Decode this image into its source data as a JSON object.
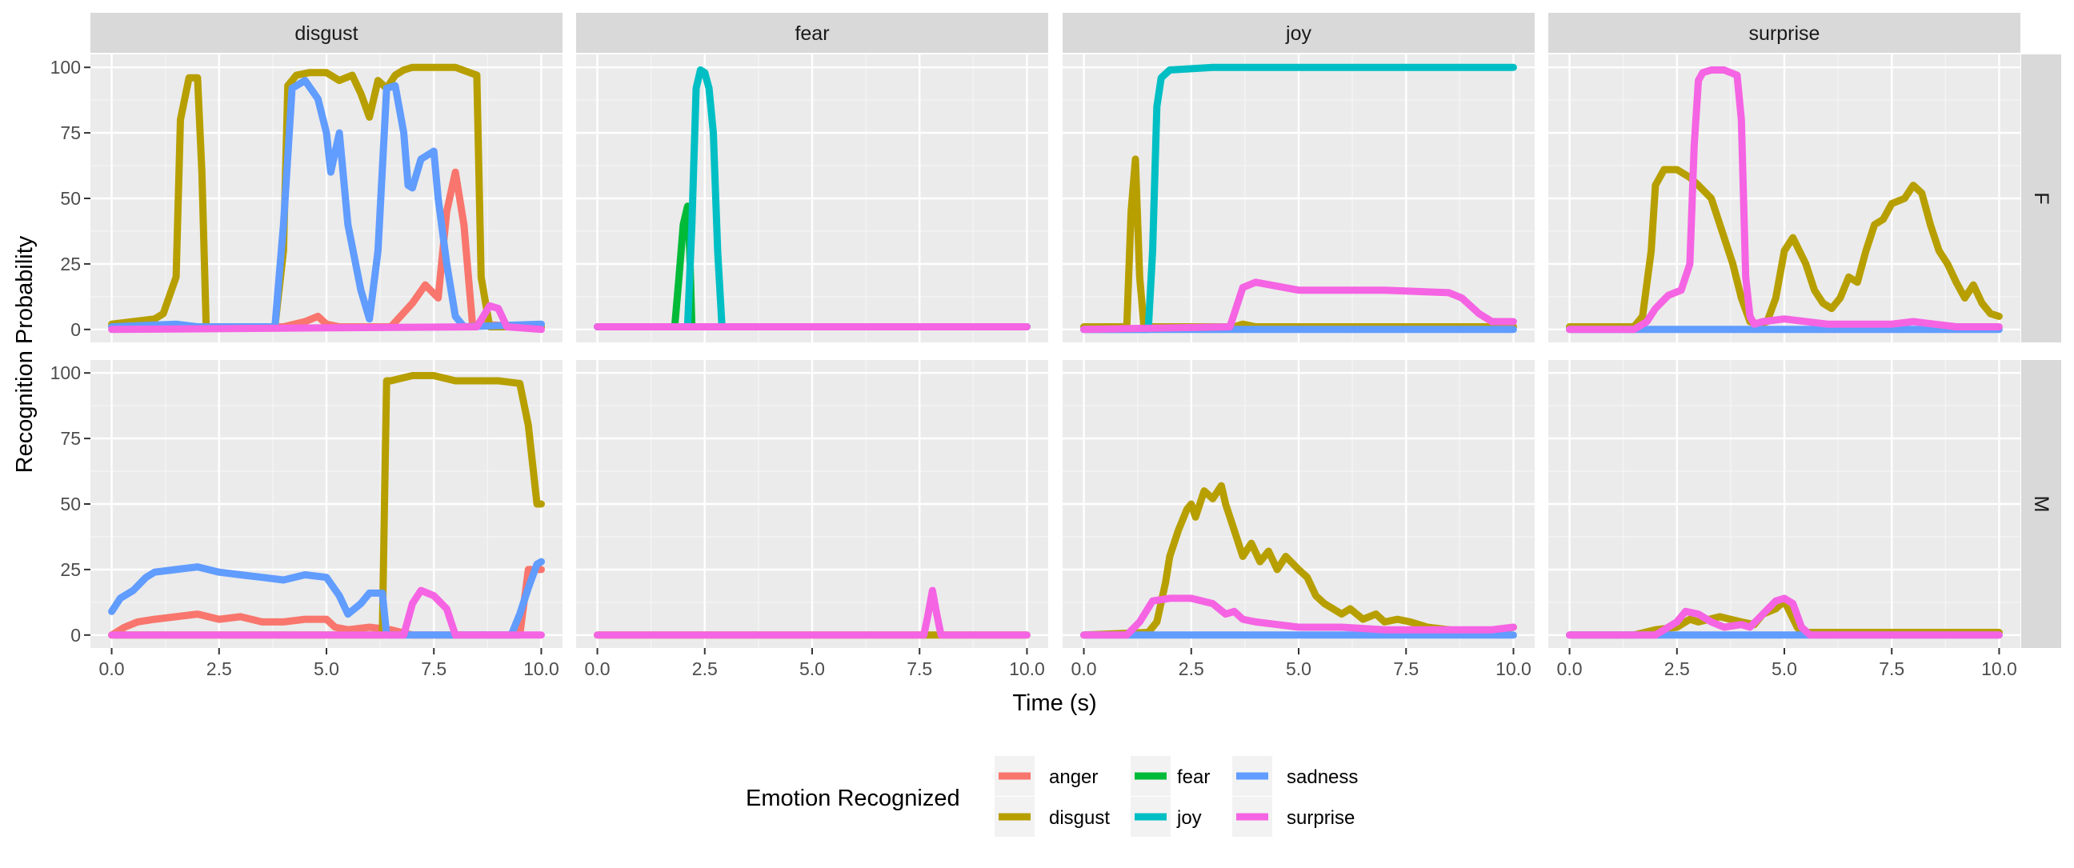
{
  "chart_data": {
    "type": "line",
    "xlabel": "Time (s)",
    "ylabel": "Recognition Probability",
    "xlim": [
      0,
      10
    ],
    "ylim": [
      0,
      100
    ],
    "x_ticks": [
      "0.0",
      "2.5",
      "5.0",
      "7.5",
      "10.0"
    ],
    "y_ticks": [
      "0",
      "25",
      "50",
      "75",
      "100"
    ],
    "x_tick_values": [
      0,
      2.5,
      5,
      7.5,
      10
    ],
    "y_tick_values": [
      0,
      25,
      50,
      75,
      100
    ],
    "grid": true,
    "facet_columns": [
      "disgust",
      "fear",
      "joy",
      "surprise"
    ],
    "facet_rows": [
      "F",
      "M"
    ],
    "legend": {
      "title": "Emotion Recognized",
      "position": "bottom",
      "entries": [
        {
          "name": "anger",
          "color": "#F8766D"
        },
        {
          "name": "disgust",
          "color": "#B79F00"
        },
        {
          "name": "fear",
          "color": "#00BA38"
        },
        {
          "name": "joy",
          "color": "#00BFC4"
        },
        {
          "name": "sadness",
          "color": "#619CFF"
        },
        {
          "name": "surprise",
          "color": "#F564E3"
        }
      ]
    },
    "panels": [
      {
        "column": "disgust",
        "row": "F",
        "series": [
          {
            "name": "disgust",
            "x": [
              0,
              0.5,
              1.0,
              1.2,
              1.5,
              1.6,
              1.8,
              2.0,
              2.1,
              2.2,
              2.5,
              3.0,
              3.8,
              4.0,
              4.1,
              4.3,
              4.6,
              5.0,
              5.3,
              5.6,
              5.8,
              6.0,
              6.2,
              6.4,
              6.6,
              6.8,
              7.0,
              7.5,
              8.0,
              8.5,
              8.6,
              8.8,
              10.0
            ],
            "y": [
              2,
              3,
              4,
              6,
              20,
              80,
              96,
              96,
              60,
              1,
              1,
              1,
              1,
              30,
              93,
              97,
              98,
              98,
              95,
              97,
              90,
              81,
              95,
              92,
              97,
              99,
              100,
              100,
              100,
              97,
              20,
              1,
              1
            ]
          },
          {
            "name": "sadness",
            "x": [
              0,
              1.5,
              2.0,
              3.8,
              4.0,
              4.2,
              4.5,
              4.8,
              5.0,
              5.1,
              5.3,
              5.5,
              5.8,
              6.0,
              6.2,
              6.4,
              6.6,
              6.8,
              6.9,
              7.0,
              7.2,
              7.5,
              7.6,
              7.8,
              8.0,
              8.2,
              10.0
            ],
            "y": [
              1,
              2,
              1,
              1,
              40,
              92,
              95,
              88,
              75,
              60,
              75,
              40,
              15,
              4,
              30,
              92,
              93,
              75,
              55,
              54,
              65,
              68,
              50,
              25,
              5,
              1,
              2
            ]
          },
          {
            "name": "anger",
            "x": [
              0,
              4.0,
              4.5,
              4.8,
              5.0,
              5.3,
              6.5,
              7.0,
              7.3,
              7.6,
              7.8,
              8.0,
              8.2,
              8.4,
              10.0
            ],
            "y": [
              1,
              1,
              3,
              5,
              2,
              1,
              1,
              10,
              17,
              12,
              45,
              60,
              40,
              2,
              1
            ]
          },
          {
            "name": "surprise",
            "x": [
              0,
              8.5,
              8.8,
              9.0,
              9.2,
              10.0
            ],
            "y": [
              0,
              1,
              9,
              8,
              1,
              0
            ]
          }
        ]
      },
      {
        "column": "fear",
        "row": "F",
        "series": [
          {
            "name": "disgust",
            "x": [
              0,
              10.0
            ],
            "y": [
              1,
              1
            ]
          },
          {
            "name": "fear",
            "x": [
              0,
              1.8,
              1.9,
              2.0,
              2.1,
              2.15,
              2.2,
              10.0
            ],
            "y": [
              1,
              1,
              20,
              40,
              47,
              30,
              1,
              1
            ]
          },
          {
            "name": "joy",
            "x": [
              0,
              2.1,
              2.2,
              2.3,
              2.4,
              2.5,
              2.6,
              2.7,
              2.8,
              2.9,
              10.0
            ],
            "y": [
              1,
              1,
              40,
              92,
              99,
              98,
              92,
              75,
              30,
              1,
              1
            ]
          },
          {
            "name": "surprise",
            "x": [
              0,
              10.0
            ],
            "y": [
              1,
              1
            ]
          }
        ]
      },
      {
        "column": "joy",
        "row": "F",
        "series": [
          {
            "name": "disgust",
            "x": [
              0,
              1.0,
              1.1,
              1.2,
              1.3,
              1.4,
              1.6,
              3.5,
              3.7,
              4.0,
              5.0,
              10.0
            ],
            "y": [
              1,
              1,
              45,
              65,
              20,
              1,
              1,
              1,
              2,
              1,
              1,
              1
            ]
          },
          {
            "name": "joy",
            "x": [
              0,
              1.5,
              1.6,
              1.7,
              1.8,
              2.0,
              3.0,
              5.0,
              10.0
            ],
            "y": [
              0,
              0,
              30,
              85,
              96,
              99,
              100,
              100,
              100
            ]
          },
          {
            "name": "surprise",
            "x": [
              0,
              3.4,
              3.5,
              3.7,
              4.0,
              5.0,
              7.0,
              8.5,
              8.8,
              9.2,
              9.5,
              10.0
            ],
            "y": [
              0,
              1,
              6,
              16,
              18,
              15,
              15,
              14,
              12,
              6,
              3,
              3
            ]
          },
          {
            "name": "sadness",
            "x": [
              0,
              10.0
            ],
            "y": [
              0,
              0
            ]
          }
        ]
      },
      {
        "column": "surprise",
        "row": "F",
        "series": [
          {
            "name": "disgust",
            "x": [
              0,
              1.5,
              1.7,
              1.9,
              2.0,
              2.2,
              2.5,
              2.8,
              3.0,
              3.3,
              3.6,
              3.8,
              4.0,
              4.2,
              4.4,
              4.6,
              4.8,
              5.0,
              5.2,
              5.5,
              5.7,
              5.9,
              6.1,
              6.3,
              6.5,
              6.7,
              6.9,
              7.1,
              7.3,
              7.5,
              7.8,
              8.0,
              8.2,
              8.4,
              8.6,
              8.8,
              9.0,
              9.2,
              9.4,
              9.6,
              9.8,
              10.0
            ],
            "y": [
              1,
              1,
              5,
              30,
              55,
              61,
              61,
              58,
              55,
              50,
              35,
              25,
              12,
              3,
              2,
              3,
              12,
              30,
              35,
              25,
              15,
              10,
              8,
              12,
              20,
              18,
              30,
              40,
              42,
              48,
              50,
              55,
              52,
              40,
              30,
              25,
              18,
              12,
              17,
              10,
              6,
              5
            ]
          },
          {
            "name": "sadness",
            "x": [
              0,
              10.0
            ],
            "y": [
              0,
              0
            ]
          },
          {
            "name": "surprise",
            "x": [
              0,
              1.5,
              1.8,
              2.0,
              2.3,
              2.6,
              2.8,
              2.9,
              3.0,
              3.1,
              3.3,
              3.6,
              3.9,
              4.0,
              4.1,
              4.2,
              4.3,
              4.5,
              5.0,
              6.0,
              7.5,
              8.0,
              9.0,
              10.0
            ],
            "y": [
              0,
              0,
              3,
              8,
              13,
              15,
              25,
              70,
              95,
              98,
              99,
              99,
              97,
              80,
              20,
              5,
              2,
              3,
              4,
              2,
              2,
              3,
              1,
              1
            ]
          }
        ]
      },
      {
        "column": "disgust",
        "row": "M",
        "series": [
          {
            "name": "anger",
            "x": [
              0,
              0.3,
              0.6,
              1.0,
              1.5,
              2.0,
              2.5,
              3.0,
              3.5,
              4.0,
              4.5,
              5.0,
              5.2,
              5.5,
              6.0,
              6.5,
              7.0,
              9.5,
              9.7,
              10.0
            ],
            "y": [
              0,
              3,
              5,
              6,
              7,
              8,
              6,
              7,
              5,
              5,
              6,
              6,
              3,
              2,
              3,
              2,
              0,
              0,
              25,
              25
            ]
          },
          {
            "name": "sadness",
            "x": [
              0,
              0.2,
              0.5,
              0.8,
              1.0,
              1.5,
              2.0,
              2.5,
              3.0,
              3.5,
              4.0,
              4.5,
              5.0,
              5.3,
              5.5,
              5.8,
              6.0,
              6.3,
              6.4,
              6.5,
              9.3,
              9.5,
              9.7,
              9.9,
              10.0
            ],
            "y": [
              9,
              14,
              17,
              22,
              24,
              25,
              26,
              24,
              23,
              22,
              21,
              23,
              22,
              15,
              8,
              12,
              16,
              16,
              0,
              0,
              0,
              8,
              18,
              27,
              28
            ]
          },
          {
            "name": "disgust",
            "x": [
              0,
              6.3,
              6.35,
              6.4,
              6.5,
              7.0,
              7.5,
              8.0,
              9.0,
              9.5,
              9.7,
              9.8,
              9.9,
              10.0
            ],
            "y": [
              0,
              0,
              50,
              97,
              97,
              99,
              99,
              97,
              97,
              96,
              80,
              65,
              50,
              50
            ]
          },
          {
            "name": "surprise",
            "x": [
              0,
              6.8,
              7.0,
              7.2,
              7.5,
              7.8,
              8.0,
              10.0
            ],
            "y": [
              0,
              0,
              12,
              17,
              15,
              10,
              0,
              0
            ]
          }
        ]
      },
      {
        "column": "fear",
        "row": "M",
        "series": [
          {
            "name": "disgust",
            "x": [
              0,
              10.0
            ],
            "y": [
              0,
              0
            ]
          },
          {
            "name": "surprise",
            "x": [
              0,
              7.6,
              7.7,
              7.8,
              7.9,
              8.0,
              10.0
            ],
            "y": [
              0,
              0,
              8,
              17,
              8,
              0,
              0
            ]
          }
        ]
      },
      {
        "column": "joy",
        "row": "M",
        "series": [
          {
            "name": "disgust",
            "x": [
              0,
              1.5,
              1.7,
              1.9,
              2.0,
              2.2,
              2.4,
              2.5,
              2.6,
              2.8,
              3.0,
              3.2,
              3.3,
              3.5,
              3.7,
              3.9,
              4.1,
              4.3,
              4.5,
              4.7,
              5.0,
              5.2,
              5.4,
              5.6,
              5.8,
              6.0,
              6.2,
              6.5,
              6.8,
              7.0,
              7.3,
              7.6,
              8.0,
              8.5,
              9.0,
              9.5,
              10.0
            ],
            "y": [
              0,
              1,
              5,
              20,
              30,
              40,
              48,
              50,
              45,
              55,
              52,
              57,
              50,
              40,
              30,
              35,
              28,
              32,
              25,
              30,
              25,
              22,
              15,
              12,
              10,
              8,
              10,
              6,
              8,
              5,
              6,
              5,
              3,
              2,
              1,
              1,
              3
            ]
          },
          {
            "name": "sadness",
            "x": [
              0,
              10.0
            ],
            "y": [
              0,
              0
            ]
          },
          {
            "name": "surprise",
            "x": [
              0,
              1.0,
              1.3,
              1.6,
              2.0,
              2.5,
              3.0,
              3.3,
              3.5,
              3.7,
              4.0,
              4.5,
              5.0,
              6.0,
              7.0,
              8.0,
              9.0,
              9.5,
              10.0
            ],
            "y": [
              0,
              0,
              5,
              13,
              14,
              14,
              12,
              8,
              9,
              6,
              5,
              4,
              3,
              3,
              2,
              2,
              2,
              2,
              3
            ]
          }
        ]
      },
      {
        "column": "surprise",
        "row": "M",
        "series": [
          {
            "name": "disgust",
            "x": [
              0,
              1.5,
              2.0,
              2.5,
              2.8,
              3.0,
              3.5,
              4.0,
              4.3,
              4.5,
              4.8,
              5.0,
              5.3,
              5.4,
              6.0,
              10.0
            ],
            "y": [
              0,
              0,
              2,
              3,
              6,
              5,
              7,
              5,
              4,
              8,
              10,
              13,
              3,
              1,
              1,
              1
            ]
          },
          {
            "name": "sadness",
            "x": [
              0,
              10.0
            ],
            "y": [
              0,
              0
            ]
          },
          {
            "name": "surprise",
            "x": [
              0,
              2.0,
              2.5,
              2.7,
              3.0,
              3.3,
              3.6,
              4.0,
              4.2,
              4.5,
              4.8,
              5.0,
              5.2,
              5.4,
              5.6,
              10.0
            ],
            "y": [
              0,
              0,
              5,
              9,
              8,
              5,
              3,
              4,
              3,
              8,
              13,
              14,
              12,
              3,
              0,
              0
            ]
          }
        ]
      }
    ]
  }
}
